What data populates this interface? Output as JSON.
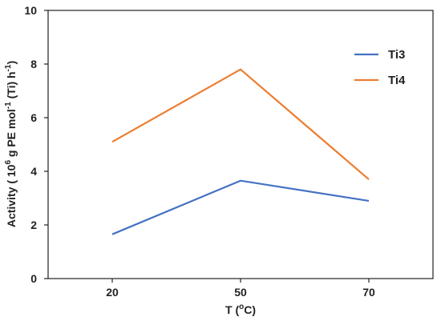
{
  "chart_data": {
    "type": "line",
    "categories": [
      "20",
      "50",
      "70"
    ],
    "series": [
      {
        "name": "Ti3",
        "values": [
          1.65,
          3.65,
          2.9
        ],
        "color": "#4472C4"
      },
      {
        "name": "Ti4",
        "values": [
          5.1,
          7.8,
          3.7
        ],
        "color": "#ED7D31"
      }
    ],
    "ylim": [
      0,
      10
    ],
    "yticks": [
      "0",
      "2",
      "4",
      "6",
      "8",
      "10"
    ],
    "xlabel": {
      "prefix": "T (",
      "sup": "o",
      "suffix": "C)"
    },
    "ylabel": {
      "pre": "Activity  ( 10",
      "sup1": "6",
      "mid": " g PE mol",
      "sup2": "-1",
      "post": " (Ti) h",
      "sup3": "-1",
      "end": ")"
    },
    "grid": false,
    "legend_position": "top-right"
  }
}
